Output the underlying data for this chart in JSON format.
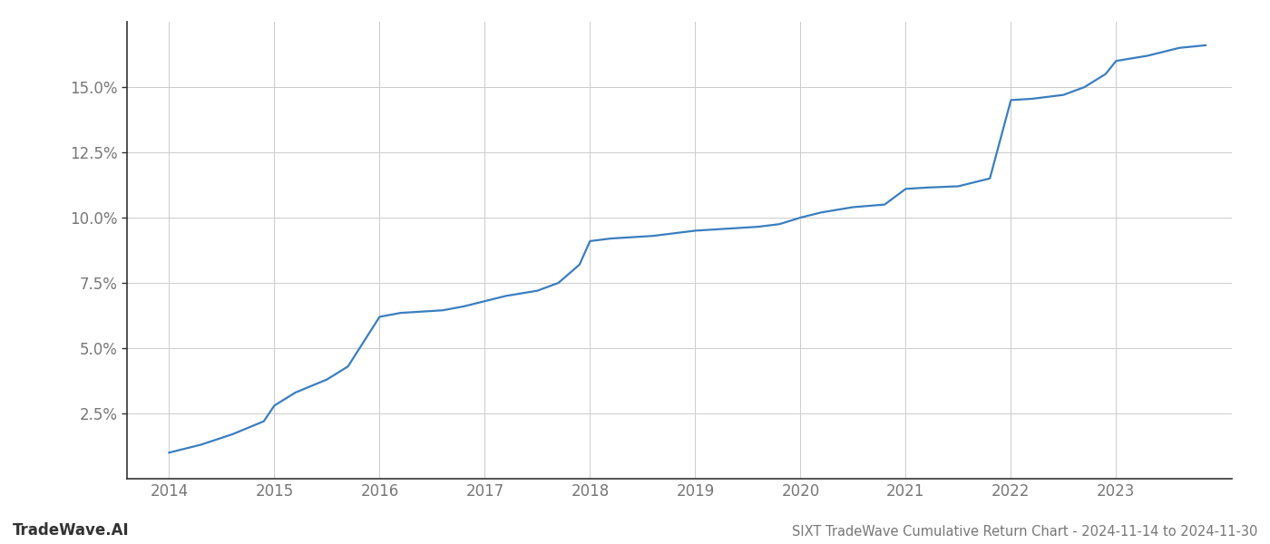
{
  "title": "SIXT TradeWave Cumulative Return Chart - 2024-11-14 to 2024-11-30",
  "watermark": "TradeWave.AI",
  "line_color": "#3a7ebf",
  "background_color": "#ffffff",
  "grid_color": "#cccccc",
  "x_values": [
    2014.0,
    2014.3,
    2014.6,
    2014.9,
    2015.0,
    2015.2,
    2015.5,
    2015.7,
    2016.0,
    2016.2,
    2016.4,
    2016.6,
    2016.8,
    2017.0,
    2017.2,
    2017.5,
    2017.7,
    2017.9,
    2018.0,
    2018.2,
    2018.4,
    2018.6,
    2018.8,
    2019.0,
    2019.2,
    2019.4,
    2019.6,
    2019.8,
    2020.0,
    2020.2,
    2020.5,
    2020.8,
    2021.0,
    2021.2,
    2021.5,
    2021.8,
    2022.0,
    2022.2,
    2022.5,
    2022.7,
    2022.9,
    2023.0,
    2023.3,
    2023.6,
    2023.85
  ],
  "y_values": [
    1.0,
    1.3,
    1.7,
    2.2,
    2.8,
    3.3,
    3.8,
    4.3,
    6.2,
    6.35,
    6.4,
    6.45,
    6.6,
    6.8,
    7.0,
    7.2,
    7.5,
    8.2,
    9.1,
    9.2,
    9.25,
    9.3,
    9.4,
    9.5,
    9.55,
    9.6,
    9.65,
    9.75,
    10.0,
    10.2,
    10.4,
    10.5,
    11.1,
    11.15,
    11.2,
    11.5,
    14.5,
    14.55,
    14.7,
    15.0,
    15.5,
    16.0,
    16.2,
    16.5,
    16.6
  ],
  "xlim": [
    2013.6,
    2024.1
  ],
  "ylim": [
    0.0,
    17.5
  ],
  "yticks": [
    2.5,
    5.0,
    7.5,
    10.0,
    12.5,
    15.0
  ],
  "xticks": [
    2014,
    2015,
    2016,
    2017,
    2018,
    2019,
    2020,
    2021,
    2022,
    2023
  ],
  "line_width": 1.6,
  "title_fontsize": 10.5,
  "tick_fontsize": 12,
  "watermark_fontsize": 12,
  "axis_color": "#333333",
  "tick_color": "#777777",
  "grid_linewidth": 0.7
}
